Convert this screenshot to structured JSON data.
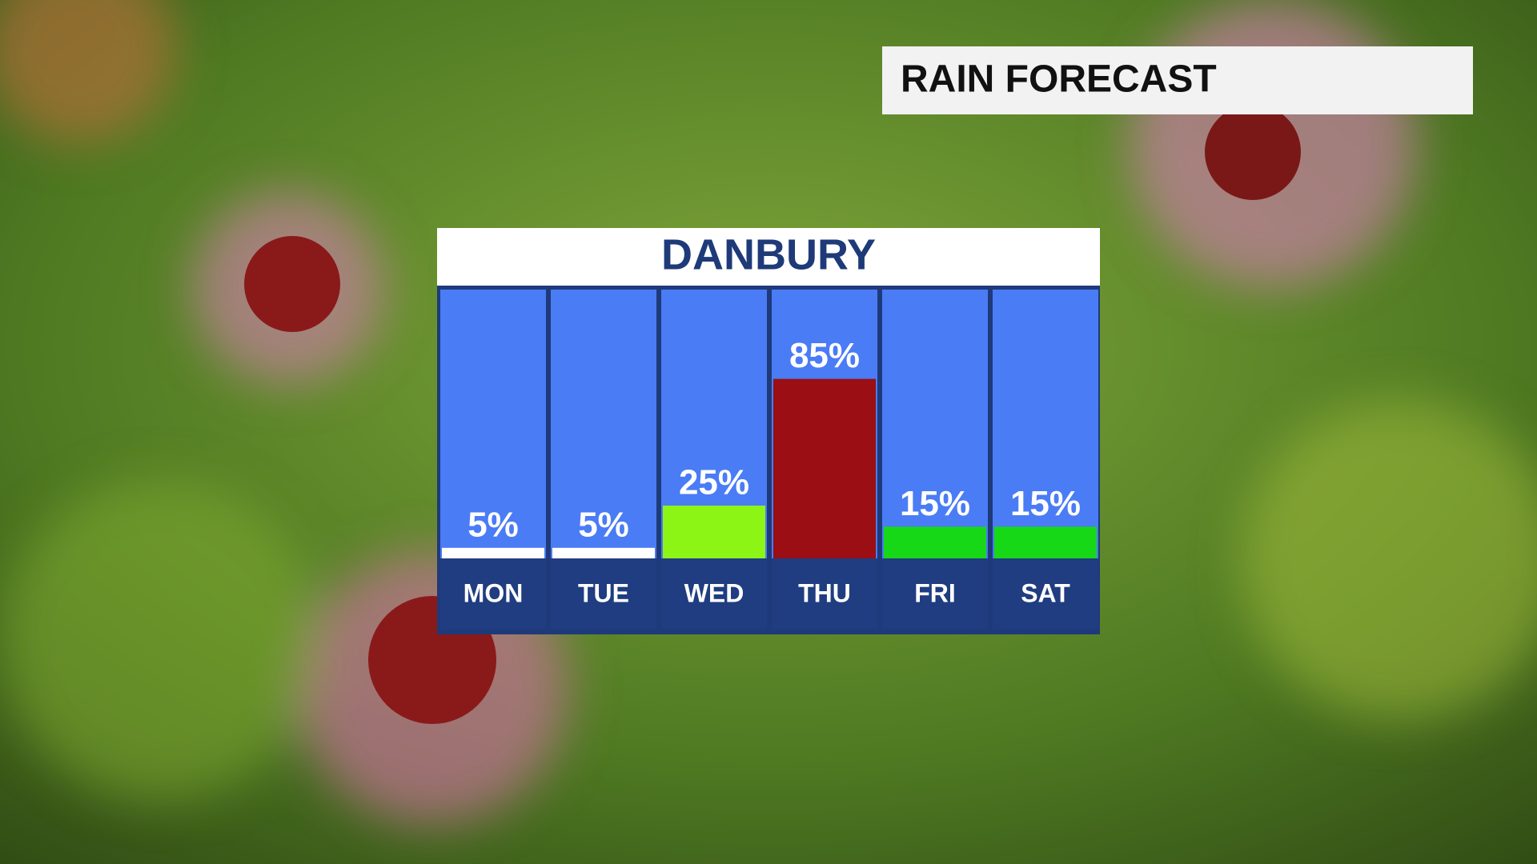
{
  "header": {
    "title": "RAIN FORECAST"
  },
  "chart_data": {
    "type": "bar",
    "title": "DANBURY",
    "categories": [
      "MON",
      "TUE",
      "WED",
      "THU",
      "FRI",
      "SAT"
    ],
    "values": [
      5,
      5,
      25,
      85,
      15,
      15
    ],
    "value_labels": [
      "5%",
      "5%",
      "25%",
      "85%",
      "15%",
      "15%"
    ],
    "colors": [
      "#ffffff",
      "#ffffff",
      "#8cf516",
      "#9a0e14",
      "#17d817",
      "#17d817"
    ]
  }
}
